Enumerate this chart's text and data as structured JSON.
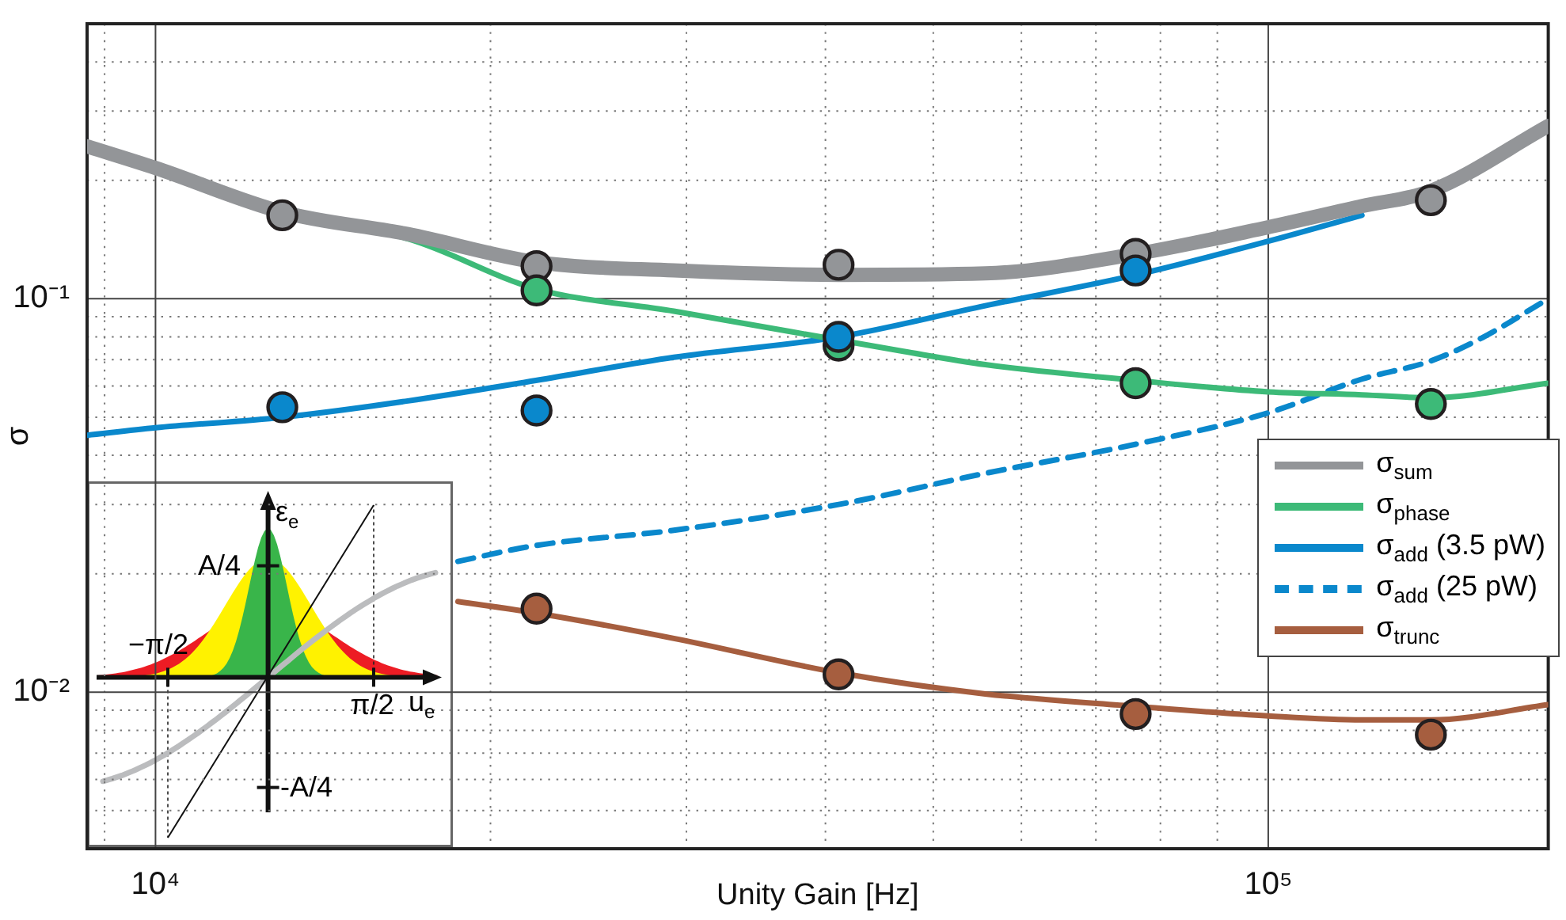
{
  "chart_data": {
    "type": "line",
    "xlabel": "Unity Gain [Hz]",
    "ylabel": "σ",
    "log": "xy",
    "grid": true,
    "legend": "right",
    "xlim": [
      8680,
      178500
    ],
    "ylim": [
      0.004,
      0.5
    ],
    "xticks": [
      {
        "value": 9000,
        "label": null
      },
      {
        "value": 10000,
        "label": "10⁴"
      },
      {
        "value": 20000,
        "label": null
      },
      {
        "value": 30000,
        "label": null
      },
      {
        "value": 40000,
        "label": null
      },
      {
        "value": 50000,
        "label": null
      },
      {
        "value": 60000,
        "label": null
      },
      {
        "value": 70000,
        "label": null
      },
      {
        "value": 80000,
        "label": null
      },
      {
        "value": 90000,
        "label": null
      },
      {
        "value": 100000,
        "label": "10⁵"
      }
    ],
    "yticks": [
      {
        "value": 0.004,
        "label": null
      },
      {
        "value": 0.005,
        "label": null
      },
      {
        "value": 0.006,
        "label": null
      },
      {
        "value": 0.007,
        "label": null
      },
      {
        "value": 0.008,
        "label": null
      },
      {
        "value": 0.009,
        "label": null
      },
      {
        "value": 0.01,
        "label": "10⁻²"
      },
      {
        "value": 0.02,
        "label": null
      },
      {
        "value": 0.03,
        "label": null
      },
      {
        "value": 0.04,
        "label": null
      },
      {
        "value": 0.05,
        "label": null
      },
      {
        "value": 0.06,
        "label": null
      },
      {
        "value": 0.07,
        "label": null
      },
      {
        "value": 0.08,
        "label": null
      },
      {
        "value": 0.09,
        "label": null
      },
      {
        "value": 0.1,
        "label": "10⁻¹"
      },
      {
        "value": 0.2,
        "label": null
      },
      {
        "value": 0.3,
        "label": null
      },
      {
        "value": 0.4,
        "label": null
      },
      {
        "value": 0.5,
        "label": null
      }
    ],
    "series": [
      {
        "name": "σ$_{sum}$",
        "type": "line",
        "color": "#939598",
        "line_style": "solid",
        "x": [
          8680,
          10000,
          13010,
          16860,
          21970,
          29230,
          41110,
          55680,
          76070,
          100000,
          121400,
          140000,
          178500
        ],
        "values": [
          0.244,
          0.215,
          0.166,
          0.146,
          0.124,
          0.118,
          0.115,
          0.116,
          0.13,
          0.152,
          0.172,
          0.188,
          0.275
        ]
      },
      {
        "name": "σ$_{phase}$",
        "type": "line",
        "color": "#3dba78",
        "line_style": "solid",
        "x": [
          13010,
          16860,
          21970,
          29230,
          47000,
          55680,
          76070,
          100000,
          121400,
          140000,
          178500
        ],
        "values": [
          0.163,
          0.142,
          0.106,
          0.093,
          0.0735,
          0.068,
          0.062,
          0.058,
          0.057,
          0.056,
          0.061
        ]
      },
      {
        "name": "σ$_{add}$ (3.5 pW)",
        "type": "line",
        "color": "#0a88cc",
        "line_style": "solid",
        "x": [
          8680,
          10000,
          13010,
          16860,
          21970,
          29230,
          41110,
          55680,
          76070,
          100000,
          121400
        ],
        "values": [
          0.045,
          0.047,
          0.05,
          0.055,
          0.062,
          0.071,
          0.08,
          0.096,
          0.115,
          0.14,
          0.163
        ]
      },
      {
        "name": "σ$_{add}$ (25 pW)",
        "type": "line",
        "color": "#0a88cc",
        "line_style": "dashed",
        "x": [
          18700,
          21970,
          29230,
          41110,
          55680,
          76070,
          100000,
          121400,
          140000,
          155700,
          178500
        ],
        "values": [
          0.0215,
          0.0236,
          0.0258,
          0.03,
          0.036,
          0.0427,
          0.0513,
          0.0625,
          0.0695,
          0.0796,
          0.1
        ]
      },
      {
        "name": "σ$_{trunc}$",
        "type": "line",
        "color": "#a65e3f",
        "line_style": "solid",
        "x": [
          18700,
          21970,
          29230,
          41110,
          55680,
          76070,
          100000,
          121400,
          140000,
          178500
        ],
        "values": [
          0.017,
          0.0159,
          0.0137,
          0.0112,
          0.0099,
          0.0092,
          0.0087,
          0.0085,
          0.0085,
          0.0093
        ]
      },
      {
        "type": "scatter",
        "marker": "circle",
        "color": "#939598",
        "x": [
          13000,
          22000,
          41100,
          76000,
          140000
        ],
        "values": [
          0.163,
          0.121,
          0.122,
          0.13,
          0.178
        ]
      },
      {
        "type": "scatter",
        "marker": "circle",
        "color": "#3dba78",
        "x": [
          22000,
          41100,
          76000,
          140000
        ],
        "values": [
          0.105,
          0.076,
          0.061,
          0.054
        ]
      },
      {
        "type": "scatter",
        "marker": "circle",
        "color": "#0a88cc",
        "x": [
          13000,
          22000,
          41100,
          76000
        ],
        "values": [
          0.053,
          0.052,
          0.08,
          0.118
        ]
      },
      {
        "type": "scatter",
        "marker": "circle",
        "color": "#a65e3f",
        "x": [
          22000,
          41100,
          76000,
          140000
        ],
        "values": [
          0.0163,
          0.0111,
          0.0088,
          0.0078
        ]
      }
    ],
    "annotations": [
      "ε$_{e}$",
      "A/4",
      "−π/2",
      "π/2",
      "u$_{e}$",
      "-A/4"
    ]
  }
}
